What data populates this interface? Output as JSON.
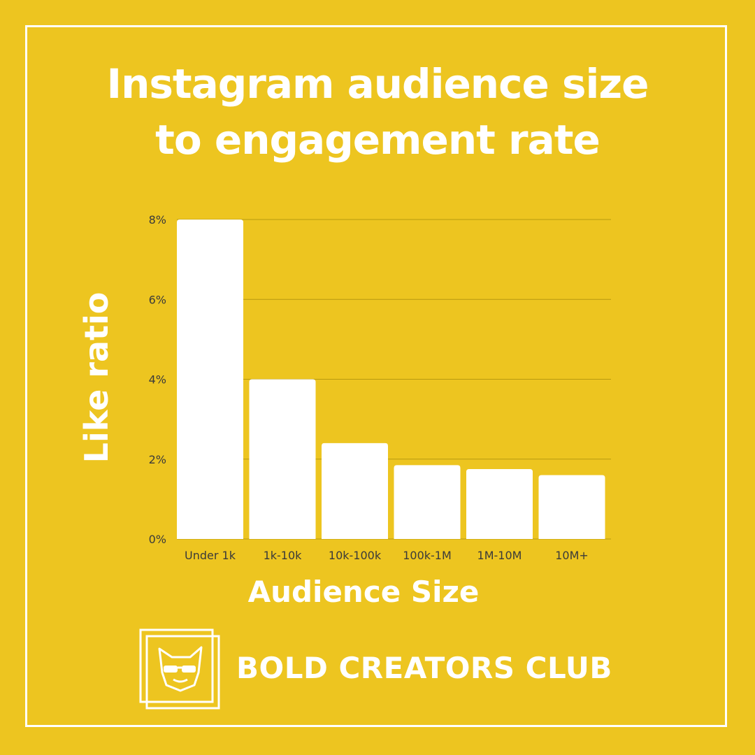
{
  "title": {
    "line1": "Instagram audience size",
    "line2": "to engagement rate"
  },
  "brand": {
    "name": "BOLD CREATORS CLUB",
    "logo_icon": "bulldog-sunglasses-icon"
  },
  "colors": {
    "background": "#EDC520",
    "foreground": "#FFFFFF",
    "gridline": "#B89A10",
    "tick_text": "#3A3A3A"
  },
  "chart_data": {
    "type": "bar",
    "title": "Instagram audience size to engagement rate",
    "xlabel": "Audience Size",
    "ylabel": "Like ratio",
    "categories": [
      "Under 1k",
      "1k-10k",
      "10k-100k",
      "100k-1M",
      "1M-10M",
      "10M+"
    ],
    "values": [
      8.0,
      4.0,
      2.4,
      1.85,
      1.75,
      1.6
    ],
    "unit": "%",
    "ylim": [
      0,
      8
    ],
    "yticks": [
      0,
      2,
      4,
      6,
      8
    ],
    "ytick_labels": [
      "0%",
      "2%",
      "4%",
      "6%",
      "8%"
    ],
    "grid": true,
    "legend": "none"
  }
}
